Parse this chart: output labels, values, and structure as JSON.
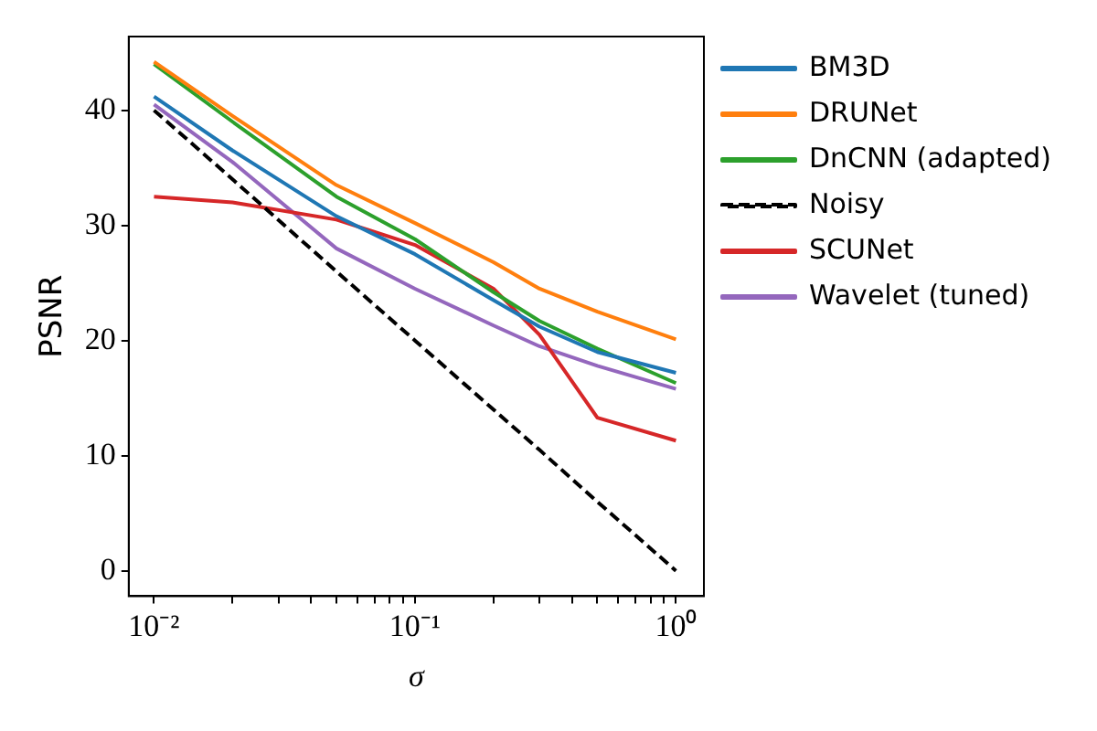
{
  "chart_data": {
    "type": "line",
    "xlabel": "σ",
    "ylabel": "PSNR",
    "log": "x",
    "x": [
      0.01,
      0.02,
      0.05,
      0.1,
      0.2,
      0.3,
      0.5,
      1.0
    ],
    "xlim": [
      0.008,
      1.28
    ],
    "xticks": [
      {
        "value": 0.01,
        "label": "10⁻²"
      },
      {
        "value": 0.02,
        "label": null
      },
      {
        "value": 0.03,
        "label": null
      },
      {
        "value": 0.04,
        "label": null
      },
      {
        "value": 0.05,
        "label": null
      },
      {
        "value": 0.06,
        "label": null
      },
      {
        "value": 0.07,
        "label": null
      },
      {
        "value": 0.08,
        "label": null
      },
      {
        "value": 0.09,
        "label": null
      },
      {
        "value": 0.1,
        "label": "10⁻¹"
      },
      {
        "value": 0.2,
        "label": null
      },
      {
        "value": 0.3,
        "label": null
      },
      {
        "value": 0.4,
        "label": null
      },
      {
        "value": 0.5,
        "label": null
      },
      {
        "value": 0.6,
        "label": null
      },
      {
        "value": 0.7,
        "label": null
      },
      {
        "value": 0.8,
        "label": null
      },
      {
        "value": 0.9,
        "label": null
      },
      {
        "value": 1,
        "label": "10⁰"
      }
    ],
    "ylim": [
      -2.2,
      46.4
    ],
    "yticks": [
      0,
      10,
      20,
      30,
      40
    ],
    "legend": "right",
    "grid": false,
    "marker": "none",
    "series": [
      {
        "name": "BM3D",
        "color": "#1f77b4",
        "values": [
          41.2,
          36.5,
          30.8,
          27.5,
          23.5,
          21.2,
          19.0,
          17.2
        ]
      },
      {
        "name": "DRUNet",
        "color": "#ff7f0e",
        "values": [
          44.2,
          39.5,
          33.5,
          30.2,
          26.8,
          24.5,
          22.5,
          20.1
        ]
      },
      {
        "name": "DnCNN (adapted)",
        "color": "#2ca02c",
        "values": [
          44.0,
          39.0,
          32.5,
          28.8,
          24.2,
          21.7,
          19.3,
          16.3
        ]
      },
      {
        "name": "Noisy",
        "color": "#000000",
        "line_style": "dashed",
        "values": [
          40,
          34.0,
          26.0,
          20,
          14.0,
          10.5,
          6.0,
          0
        ]
      },
      {
        "name": "SCUNet",
        "color": "#d62728",
        "values": [
          32.5,
          32.0,
          30.5,
          28.3,
          24.5,
          20.5,
          13.3,
          11.3
        ]
      },
      {
        "name": "Wavelet (tuned)",
        "color": "#9467bd",
        "values": [
          40.5,
          35.5,
          28.0,
          24.5,
          21.3,
          19.5,
          17.8,
          15.8
        ]
      }
    ]
  }
}
